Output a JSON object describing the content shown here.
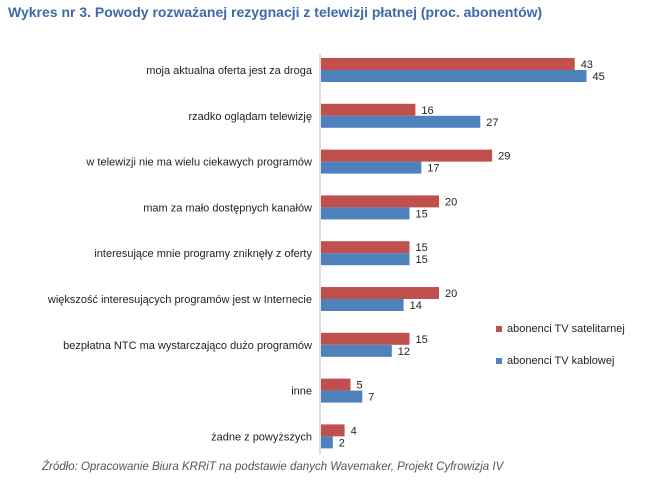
{
  "title": "Wykres nr 3. Powody rozważanej rezygnacji z telewizji płatnej (proc. abonentów)",
  "source": "Źródło: Opracowanie Biura KRRiT na podstawie danych Wavemaker, Projekt Cyfrowizja IV",
  "colors": {
    "satellite": "#c0504d",
    "cable": "#4f81bd"
  },
  "chart_data": {
    "type": "bar",
    "orientation": "horizontal",
    "title": "Wykres nr 3. Powody rozważanej rezygnacji z telewizji płatnej (proc. abonentów)",
    "categories": [
      "moja aktualna oferta jest za droga",
      "rzadko oglądam telewizję",
      "w telewizji nie ma wielu ciekawych programów",
      "mam za mało dostępnych kanałów",
      "interesujące mnie programy zniknęły z oferty",
      "większość interesujących programów jest w Internecie",
      "bezpłatna NTC ma wystarczająco dużo programów",
      "inne",
      "żadne z powyższych"
    ],
    "series": [
      {
        "name": "abonenci TV satelitarnej",
        "values": [
          43,
          16,
          29,
          20,
          15,
          20,
          15,
          5,
          4
        ]
      },
      {
        "name": "abonenci TV kablowej",
        "values": [
          45,
          27,
          17,
          15,
          15,
          14,
          12,
          7,
          2
        ]
      }
    ],
    "xlim": [
      0,
      45
    ],
    "grid": false,
    "data_labels": true,
    "legend_position": "right"
  }
}
